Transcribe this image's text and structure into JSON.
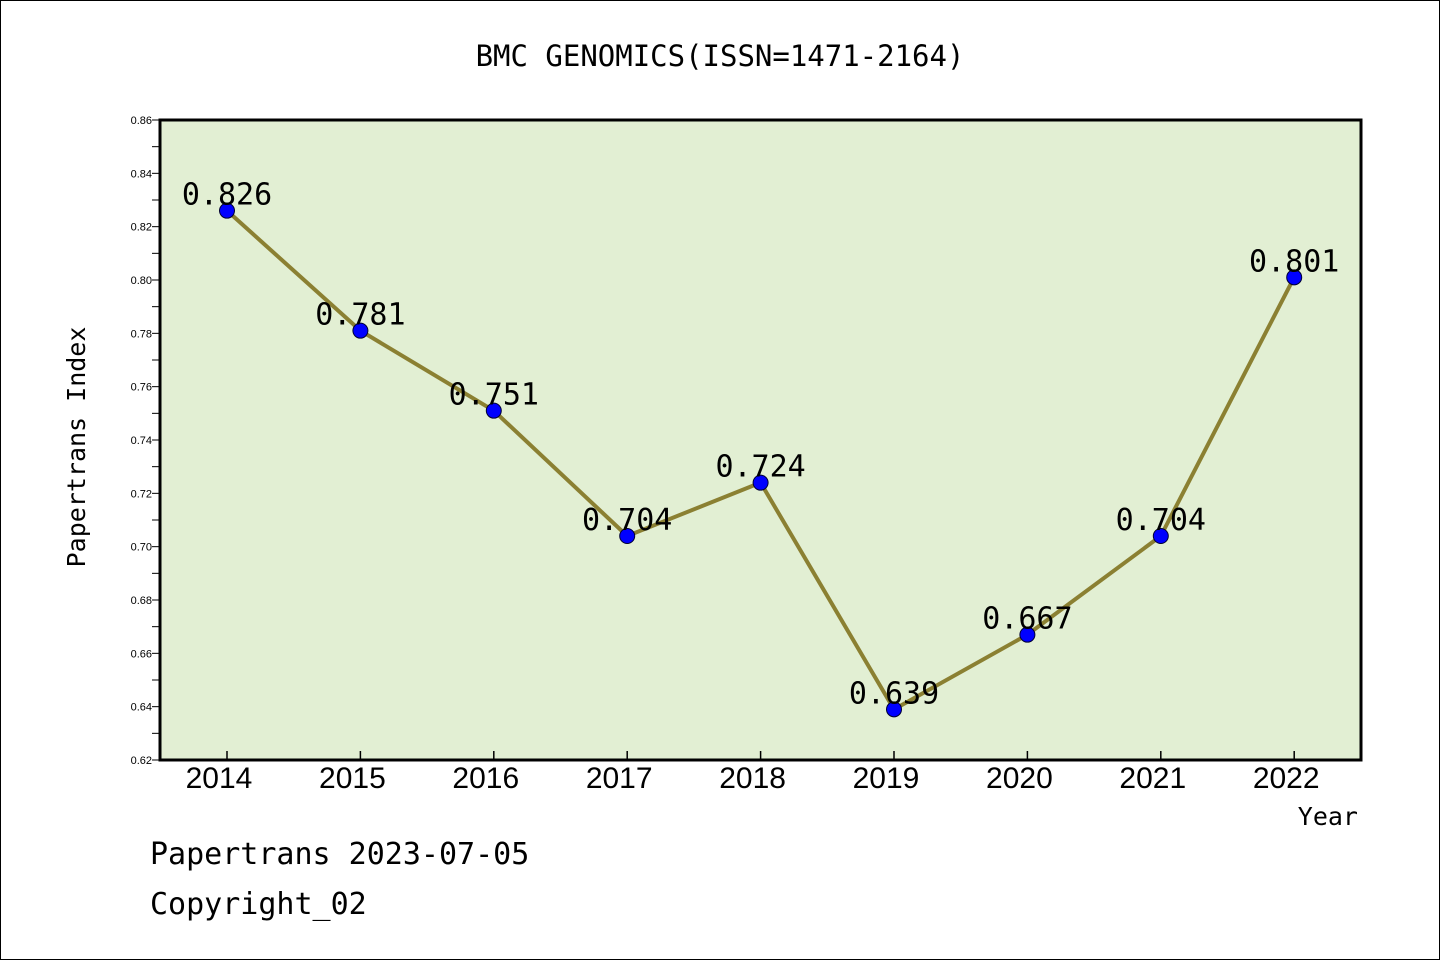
{
  "chart_data": {
    "type": "line",
    "title": "BMC GENOMICS(ISSN=1471-2164)",
    "xlabel": "Year",
    "ylabel": "Papertrans Index",
    "categories": [
      "2014",
      "2015",
      "2016",
      "2017",
      "2018",
      "2019",
      "2020",
      "2021",
      "2022"
    ],
    "series": [
      {
        "values": [
          0.826,
          0.781,
          0.751,
          0.704,
          0.724,
          0.639,
          0.667,
          0.704,
          0.801
        ],
        "labels": [
          "0.826",
          "0.781",
          "0.751",
          "0.704",
          "0.724",
          "0.639",
          "0.667",
          "0.704",
          "0.801"
        ],
        "line_color": "#8b8032",
        "marker_color": "#0000ff"
      }
    ],
    "ylim": [
      0.62,
      0.86
    ],
    "yticks": [
      "0.62",
      "0.64",
      "0.66",
      "0.68",
      "0.70",
      "0.72",
      "0.74",
      "0.76",
      "0.78",
      "0.80",
      "0.82",
      "0.84",
      "0.86"
    ],
    "plot_background": "#e2efd3",
    "grid": false,
    "legend": "none"
  },
  "footer": {
    "line1": "Papertrans 2023-07-05",
    "line2": "Copyright_02"
  }
}
